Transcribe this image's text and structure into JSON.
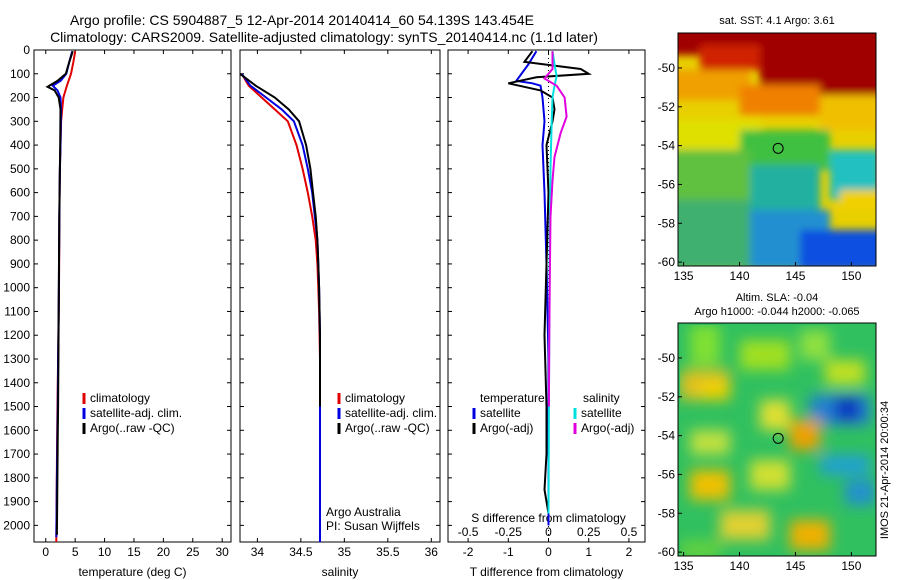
{
  "header": {
    "line1": "Argo profile: CS 5904887_5 12-Apr-2014 20140414_60 54.139S 143.454E",
    "line2": "Climatology: CARS2009. Satellite-adjusted climatology: synTS_20140414.nc (1.1d later)"
  },
  "colors": {
    "clim": "#e00000",
    "sat": "#0000e0",
    "argo": "#000000",
    "sal_sat": "#00e0e0",
    "sal_argo": "#e000e0"
  },
  "chart_data": [
    {
      "type": "line",
      "name": "temperature-profile",
      "xlabel": "temperature (deg C)",
      "ylabel": "",
      "xlim": [
        -2,
        31.5
      ],
      "ylim": [
        2070,
        0
      ],
      "xticks": [
        0,
        5,
        10,
        15,
        20,
        25,
        30
      ],
      "yticks": [
        0,
        100,
        200,
        300,
        400,
        500,
        600,
        700,
        800,
        900,
        1000,
        1100,
        1200,
        1300,
        1400,
        1500,
        1600,
        1700,
        1800,
        1900,
        2000
      ],
      "legend": [
        "climatology",
        "satellite-adj. clim.",
        "Argo(..raw -QC)"
      ],
      "series": [
        {
          "name": "climatology",
          "color": "#e00000",
          "x": [
            5.0,
            4.7,
            4.3,
            3.6,
            3.0,
            2.8,
            2.6,
            2.5,
            2.4,
            2.35,
            2.3,
            2.25,
            2.2,
            2.15,
            2.1,
            2.05,
            2.0,
            1.95,
            1.9,
            1.85,
            1.8
          ],
          "y": [
            5,
            50,
            100,
            150,
            200,
            250,
            300,
            400,
            500,
            600,
            800,
            1000,
            1100,
            1200,
            1300,
            1400,
            1500,
            1600,
            1750,
            1900,
            2070
          ]
        },
        {
          "name": "satellite-adj. clim.",
          "color": "#0000e0",
          "x": [
            4.5,
            4.0,
            3.5,
            2.5,
            1.2,
            2.0,
            2.5,
            2.6,
            2.5,
            2.4,
            2.3,
            2.25,
            2.2,
            2.1,
            2.05,
            2.0,
            1.95,
            1.9,
            1.85,
            1.8
          ],
          "y": [
            5,
            50,
            100,
            130,
            150,
            170,
            200,
            250,
            400,
            500,
            700,
            900,
            1100,
            1300,
            1500,
            1600,
            1700,
            1800,
            1950,
            2050
          ]
        },
        {
          "name": "Argo(..raw -QC)",
          "color": "#000000",
          "x": [
            4.6,
            4.0,
            3.4,
            2.0,
            0.3,
            1.5,
            2.2,
            2.5,
            2.45,
            2.4,
            2.3,
            2.25,
            2.2,
            2.15,
            2.1,
            2.05,
            2.0,
            1.95,
            1.9
          ],
          "y": [
            5,
            50,
            100,
            130,
            155,
            170,
            200,
            250,
            400,
            500,
            700,
            900,
            1100,
            1300,
            1500,
            1600,
            1750,
            1900,
            2040
          ]
        }
      ]
    },
    {
      "type": "line",
      "name": "salinity-profile",
      "xlabel": "salinity",
      "xlim": [
        33.8,
        36.1
      ],
      "ylim": [
        2070,
        0
      ],
      "xticks": [
        34,
        34.5,
        35,
        35.5,
        36
      ],
      "legend": [
        "climatology",
        "satellite-adj. clim.",
        "Argo(..raw -QC)"
      ],
      "annotation": [
        "Argo Australia",
        "PI: Susan Wijffels"
      ],
      "series": [
        {
          "name": "climatology",
          "color": "#e00000",
          "x": [
            33.82,
            33.9,
            34.05,
            34.2,
            34.35,
            34.45,
            34.52,
            34.58,
            34.63,
            34.67,
            34.69,
            34.7,
            34.71,
            34.72,
            34.72,
            34.72
          ],
          "y": [
            100,
            150,
            200,
            250,
            300,
            400,
            500,
            600,
            700,
            800,
            900,
            1000,
            1100,
            1300,
            1600,
            2070
          ]
        },
        {
          "name": "satellite-adj. clim.",
          "color": "#0000e0",
          "x": [
            33.82,
            33.92,
            34.1,
            34.28,
            34.42,
            34.52,
            34.58,
            34.63,
            34.66,
            34.69,
            34.7,
            34.71,
            34.72,
            34.72,
            34.72
          ],
          "y": [
            100,
            150,
            200,
            250,
            300,
            400,
            500,
            600,
            700,
            800,
            900,
            1000,
            1200,
            1600,
            2070
          ]
        },
        {
          "name": "Argo(..raw -QC)",
          "color": "#000000",
          "x": [
            33.8,
            33.98,
            34.2,
            34.36,
            34.48,
            34.56,
            34.61,
            34.64,
            34.67,
            34.69,
            34.7,
            34.71,
            34.72,
            34.72
          ],
          "y": [
            100,
            150,
            200,
            250,
            300,
            400,
            500,
            600,
            700,
            800,
            900,
            1000,
            1200,
            1500
          ]
        }
      ]
    },
    {
      "type": "line",
      "name": "difference-profile",
      "xlabel": "T difference from climatology",
      "xlabel_top": "S difference from climatology",
      "xlim": [
        -2.5,
        2.4
      ],
      "ylim": [
        2070,
        0
      ],
      "xticks": [
        -2,
        -1,
        0,
        1,
        2
      ],
      "xticks_s": [
        -0.5,
        -0.25,
        0,
        0.25,
        0.5
      ],
      "xticks_s_labels": [
        "-0.5",
        "-0.25",
        "0",
        "0.25",
        "0.5"
      ],
      "legend_headers": [
        "temperature",
        "salinity"
      ],
      "legend": [
        "satellite",
        "Argo(-adj)",
        "satellite",
        "Argo(-adj)"
      ],
      "series": [
        {
          "name": "temperature satellite",
          "color": "#0000e0",
          "x": [
            -0.3,
            -0.5,
            -0.8,
            -0.4,
            -0.2,
            -0.15,
            -0.1,
            -0.15,
            -0.1,
            -0.05,
            0,
            0,
            0
          ],
          "y": [
            5,
            60,
            130,
            140,
            150,
            200,
            300,
            400,
            600,
            900,
            1300,
            1700,
            2000
          ]
        },
        {
          "name": "temperature Argo(-adj)",
          "color": "#000000",
          "x": [
            -0.4,
            -0.6,
            0.8,
            1.0,
            -0.3,
            -1.0,
            -0.2,
            0.1,
            0.15,
            0.1,
            -0.05,
            0,
            -0.05,
            -0.1,
            -0.05,
            -0.05,
            -0.1,
            0
          ],
          "y": [
            5,
            50,
            80,
            100,
            115,
            140,
            170,
            200,
            250,
            300,
            400,
            600,
            900,
            1200,
            1500,
            1700,
            1850,
            1950
          ]
        },
        {
          "name": "salinity satellite",
          "color": "#00e0e0",
          "x": [
            0.1,
            0.15,
            0.2,
            0.15,
            0.1,
            0.08,
            0.05,
            0.03,
            0.02,
            0.01,
            0
          ],
          "y": [
            5,
            60,
            110,
            150,
            200,
            300,
            500,
            800,
            1100,
            1500,
            1950
          ]
        },
        {
          "name": "salinity Argo(-adj)",
          "color": "#e000e0",
          "x": [
            0.1,
            0.1,
            -0.1,
            0.2,
            0.4,
            0.45,
            0.3,
            0.15,
            0.1,
            0.05,
            0.03,
            0.02,
            0.01
          ],
          "y": [
            5,
            80,
            120,
            150,
            200,
            280,
            350,
            450,
            550,
            700,
            1000,
            1200,
            1500
          ]
        }
      ]
    },
    {
      "type": "heatmap",
      "name": "sst-map",
      "title": "sat. SST: 4.1  Argo: 3.61",
      "xlim": [
        134.5,
        152.2
      ],
      "ylim": [
        -60.2,
        -48.2
      ],
      "xticks": [
        135,
        140,
        145,
        150
      ],
      "yticks": [
        -50,
        -52,
        -54,
        -56,
        -58,
        -60
      ],
      "marker": {
        "lon": 143.454,
        "lat": -54.139
      }
    },
    {
      "type": "heatmap",
      "name": "sla-map",
      "title": "Altim. SLA: -0.04",
      "subtitle": "Argo h1000: -0.044  h2000: -0.065",
      "xlim": [
        134.5,
        152.2
      ],
      "ylim": [
        -60.2,
        -48.2
      ],
      "xticks": [
        135,
        140,
        145,
        150
      ],
      "yticks": [
        -50,
        -52,
        -54,
        -56,
        -58,
        -60
      ],
      "marker": {
        "lon": 143.454,
        "lat": -54.139
      },
      "side_label": "IMOS 21-Apr-2014 20:00:34"
    }
  ]
}
